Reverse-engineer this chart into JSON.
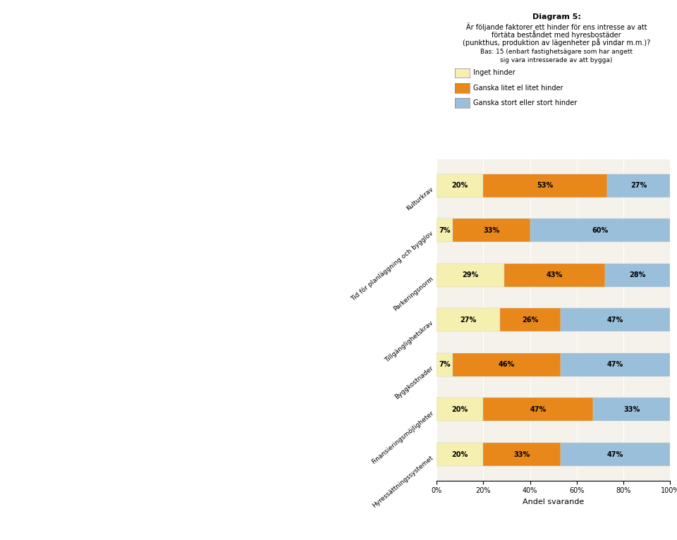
{
  "categories": [
    "Hyressättningssystemet",
    "Finansieringsmöjligheter",
    "Byggkostnader",
    "Tillgänglighetskrav",
    "Parkeringsnorm",
    "Tid för planläggning och bygglov",
    "Kulturkrav"
  ],
  "inget_hinder": [
    20,
    20,
    7,
    27,
    29,
    7,
    20
  ],
  "ganska_litet": [
    33,
    47,
    46,
    26,
    43,
    33,
    53
  ],
  "ganska_stort": [
    47,
    33,
    47,
    47,
    28,
    60,
    27
  ],
  "color_inget": "#f5f0b0",
  "color_litet": "#e8871a",
  "color_stort": "#9abfdb",
  "legend_labels": [
    "Inget hinder",
    "Ganska litet el litet hinder",
    "Ganska stort eller stort hinder"
  ],
  "xlabel": "Andel svarande",
  "title": "Diagram 5:",
  "subtitle1": "Är följande faktorer ett hinder för ens intresse av att",
  "subtitle2": "förtäta beståndet med hyresbostäder",
  "subtitle3": "(punkthus, produktion av lägenheter på vindar m.m.)?",
  "bas_text": "Bas: 15 (enbart fastighetsägare som har angett\nsig vara intresserade av att bygga)",
  "bar_height": 0.52,
  "figsize": [
    9.6,
    7.66
  ],
  "dpi": 100,
  "page_bg": "#ffffff",
  "chart_bg": "#f5f2eb"
}
